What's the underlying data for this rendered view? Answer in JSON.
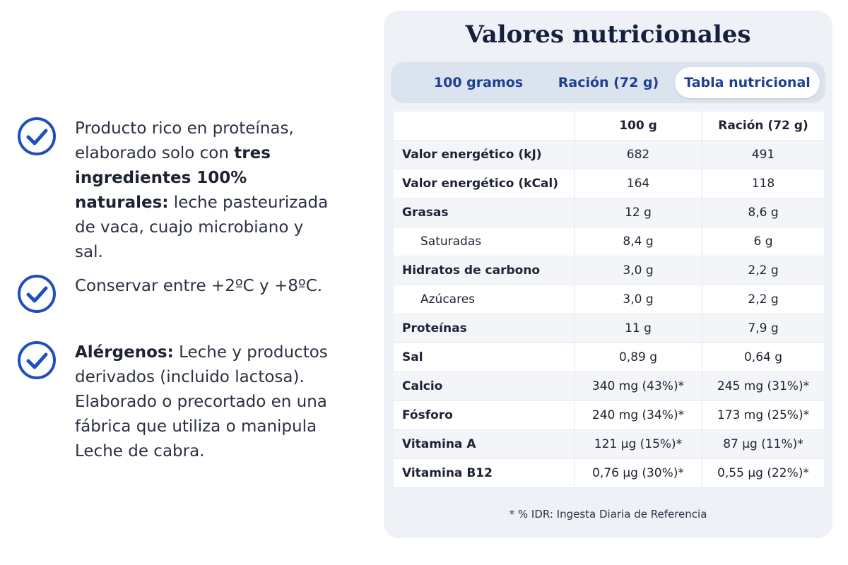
{
  "left": {
    "items": [
      {
        "segments": [
          {
            "text": "Producto rico en proteínas, elaborado solo con ",
            "bold": false
          },
          {
            "text": "tres ingredientes 100% naturales:",
            "bold": true
          },
          {
            "text": " leche pasteurizada de vaca, cuajo microbiano y sal.",
            "bold": false
          }
        ]
      },
      {
        "segments": [
          {
            "text": "Conservar entre +2ºC y +8ºC.",
            "bold": false
          }
        ]
      },
      {
        "segments": [
          {
            "text": "Alérgenos:",
            "bold": true
          },
          {
            "text": " Leche y productos derivados (incluido lactosa). Elaborado o precortado en una fábrica que utiliza o manipula Leche de cabra.",
            "bold": false
          }
        ]
      }
    ]
  },
  "panel": {
    "title": "Valores nutricionales",
    "tabs": [
      "100 gramos",
      "Ración (72 g)",
      "Tabla nutricional"
    ],
    "active_tab": 2,
    "table": {
      "columns": [
        "100 g",
        "Ración (72 g)"
      ],
      "rows": [
        {
          "label": "Valor energético (kJ)",
          "indent": false,
          "values": [
            "682",
            "491"
          ]
        },
        {
          "label": "Valor energético (kCal)",
          "indent": false,
          "values": [
            "164",
            "118"
          ]
        },
        {
          "label": "Grasas",
          "indent": false,
          "values": [
            "12 g",
            "8,6 g"
          ]
        },
        {
          "label": "Saturadas",
          "indent": true,
          "values": [
            "8,4 g",
            "6 g"
          ]
        },
        {
          "label": "Hidratos de carbono",
          "indent": false,
          "values": [
            "3,0 g",
            "2,2 g"
          ]
        },
        {
          "label": "Azúcares",
          "indent": true,
          "values": [
            "3,0 g",
            "2,2 g"
          ]
        },
        {
          "label": "Proteínas",
          "indent": false,
          "values": [
            "11 g",
            "7,9 g"
          ]
        },
        {
          "label": "Sal",
          "indent": false,
          "values": [
            "0,89 g",
            "0,64 g"
          ]
        },
        {
          "label": "Calcio",
          "indent": false,
          "values": [
            "340 mg (43%)*",
            "245 mg (31%)*"
          ]
        },
        {
          "label": "Fósforo",
          "indent": false,
          "values": [
            "240 mg (34%)*",
            "173 mg (25%)*"
          ]
        },
        {
          "label": "Vitamina A",
          "indent": false,
          "values": [
            "121 µg (15%)*",
            "87 µg (11%)*"
          ]
        },
        {
          "label": "Vitamina B12",
          "indent": false,
          "values": [
            "0,76 µg (30%)*",
            "0,55 µg (22%)*"
          ]
        }
      ]
    },
    "footnote": "* % IDR: Ingesta Diaria de Referencia"
  }
}
